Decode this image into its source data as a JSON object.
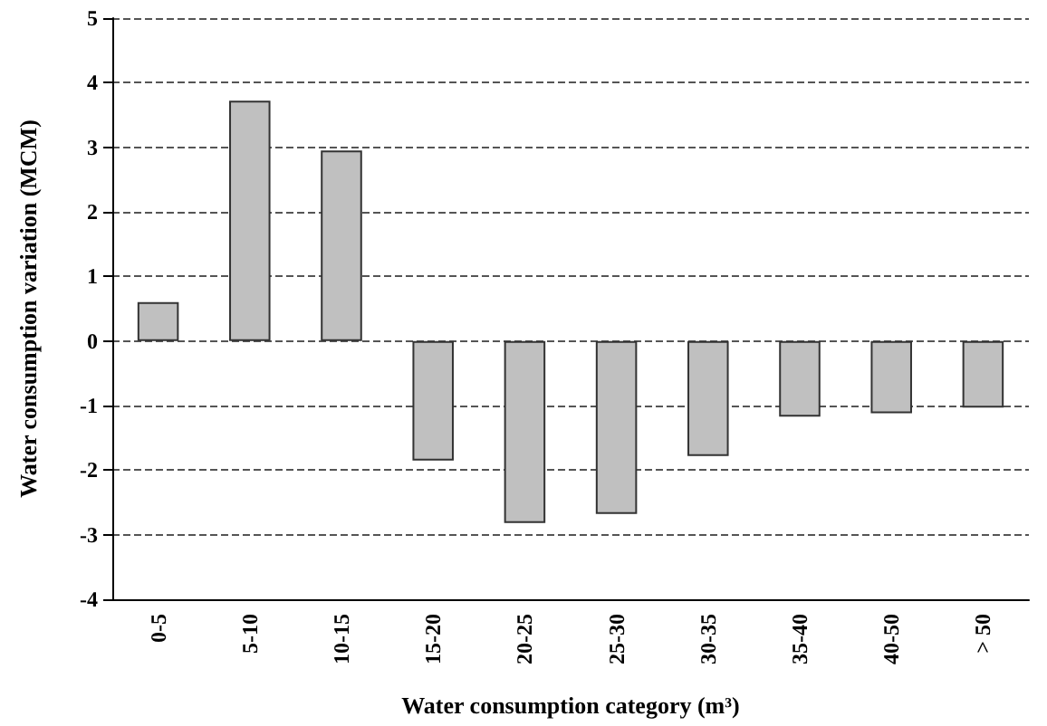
{
  "chart_data": {
    "type": "bar",
    "xlabel": "Water consumption category (m³)",
    "ylabel": "Water consumption variation (MCM)",
    "categories": [
      "0-5",
      "5-10",
      "10-15",
      "15-20",
      "20-25",
      "25-30",
      "30-35",
      "35-40",
      "40-50",
      "> 50"
    ],
    "values": [
      0.6,
      3.72,
      2.95,
      -1.85,
      -2.82,
      -2.68,
      -1.78,
      -1.17,
      -1.12,
      -1.03
    ],
    "color": "#c0c0c0",
    "ylim": [
      -4,
      5
    ],
    "yticks": [
      -4,
      -3,
      -2,
      -1,
      0,
      1,
      2,
      3,
      4,
      5
    ],
    "grid": "y"
  }
}
